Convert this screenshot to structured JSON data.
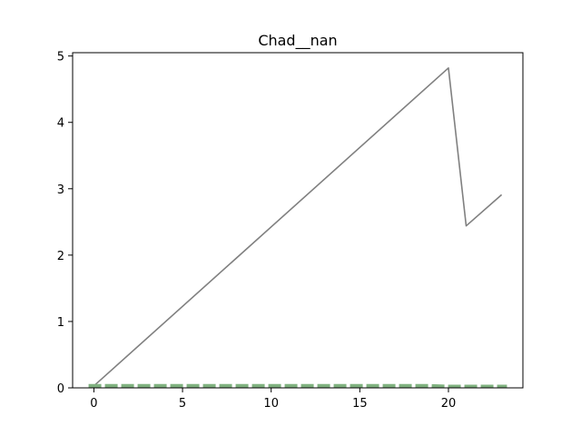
{
  "chart_data": {
    "type": "line",
    "title": "Chad__nan",
    "xlabel": "",
    "ylabel": "",
    "xlim": [
      -1.2,
      24.2
    ],
    "ylim": [
      0,
      5.05
    ],
    "grid": false,
    "xticks": [
      0,
      5,
      10,
      15,
      20
    ],
    "yticks": [
      0,
      1,
      2,
      3,
      4,
      5
    ],
    "series": [
      {
        "color": "#808080",
        "style": "solid",
        "x": [
          0,
          20,
          21,
          23
        ],
        "y": [
          0.03,
          4.82,
          2.44,
          2.91
        ]
      },
      {
        "color": "#7fb17f",
        "style": "dashed",
        "x": [
          -0.3,
          0,
          1,
          2,
          3,
          4,
          5,
          6,
          7,
          8,
          9,
          10,
          11,
          12,
          13,
          14,
          15,
          16,
          17,
          18,
          19,
          20,
          21,
          22,
          23,
          23.3
        ],
        "y": [
          0.03,
          0.03,
          0.03,
          0.03,
          0.03,
          0.03,
          0.03,
          0.03,
          0.03,
          0.03,
          0.03,
          0.03,
          0.03,
          0.03,
          0.03,
          0.03,
          0.03,
          0.03,
          0.03,
          0.03,
          0.03,
          0.02,
          0.02,
          0.02,
          0.02,
          0.02
        ]
      }
    ]
  }
}
